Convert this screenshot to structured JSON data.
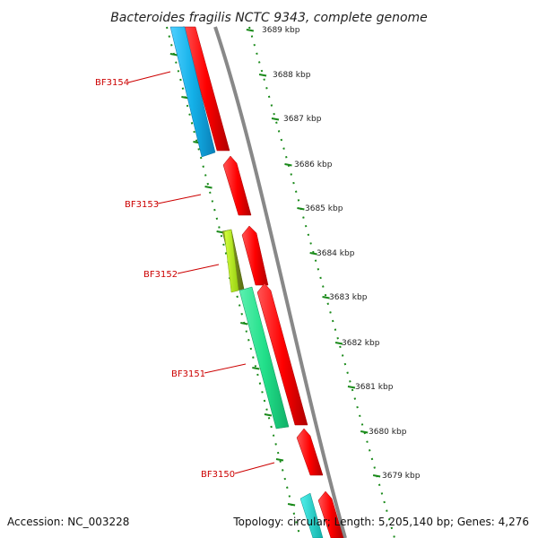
{
  "title": "Bacteroides fragilis NCTC 9343, complete genome",
  "footer": {
    "accession": "Accession: NC_003228",
    "summary": "Topology: circular; Length: 5,205,140 bp; Genes: 4,276"
  },
  "colors": {
    "forward": "#ff0000",
    "backbone": "#888888",
    "tick": "#1a8a1a",
    "label": "#cc0000",
    "blue": "#13b0e8",
    "yellow_green": "#b4e820",
    "olive": "#7a8e1e",
    "sea_green": "#22e08a",
    "cyan": "#1ad0c8"
  },
  "kbp_labels": [
    "3689 kbp",
    "3688 kbp",
    "3687 kbp",
    "3686 kbp",
    "3685 kbp",
    "3684 kbp",
    "3683 kbp",
    "3682 kbp",
    "3681 kbp",
    "3680 kbp",
    "3679 kbp"
  ],
  "gene_labels": [
    "BF3154",
    "BF3153",
    "BF3152",
    "BF3151",
    "BF3150"
  ]
}
